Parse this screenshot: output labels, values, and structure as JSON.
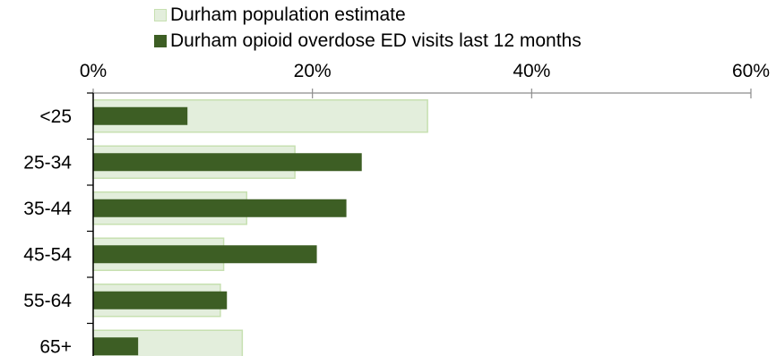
{
  "chart_data": {
    "type": "bar",
    "orientation": "horizontal",
    "title": "",
    "xlabel": "",
    "ylabel": "",
    "categories": [
      "<25",
      "25-34",
      "35-44",
      "45-54",
      "55-64",
      "65+"
    ],
    "series": [
      {
        "name": "Durham population estimate",
        "color": "#e3eedc",
        "border_color": "#c7e0b1",
        "values": [
          30.5,
          18.4,
          14.0,
          11.9,
          11.6,
          13.6
        ]
      },
      {
        "name": "Durham opioid overdose ED visits last 12 months",
        "color": "#3d5e24",
        "values": [
          8.6,
          24.5,
          23.1,
          20.4,
          12.2,
          4.1
        ]
      }
    ],
    "xlim": [
      0,
      60
    ],
    "x_ticks": [
      "0%",
      "20%",
      "40%",
      "60%"
    ],
    "x_axis_position": "top",
    "legend_position": "top",
    "grid": false
  }
}
